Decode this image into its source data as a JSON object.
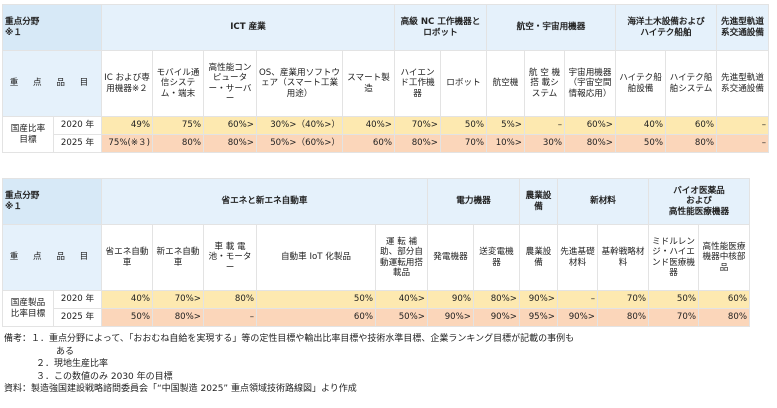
{
  "table1": {
    "header": {
      "field_label": "重点分野\n※１",
      "item_label": "重 点 品 目"
    },
    "categories": [
      "ICT 産業",
      "高級 NC 工作機器とロボット",
      "航空・宇宙用機器",
      "海洋土木設備および\nハイテク船舶",
      "先進型軌道系交通設備"
    ],
    "items": [
      "IC および専用機器※２",
      "モバイル通信システム・端末",
      "高性能コンピューター・サーバー",
      "OS、産業用ソフトウェア（スマート工業用途）",
      "スマート製造",
      "ハイエンド工作機器",
      "ロボット",
      "航空機",
      "航 空 機 搭 載システム",
      "宇宙用機器（宇宙空間情報応用）",
      "ハイテク船舶設備",
      "ハイテク船舶システム",
      "先進型軌道系交通設備"
    ],
    "row_label": "国産比率\n目標",
    "rows": [
      {
        "year": "2020 年",
        "values": [
          "49%",
          "75%",
          "60%>",
          "30%>（40%>）",
          "40%>",
          "70%>",
          "50%",
          "5%>",
          "–",
          "60%>",
          "40%",
          "60%",
          "–"
        ]
      },
      {
        "year": "2025 年",
        "values": [
          "75%(※３)",
          "80%",
          "80%>",
          "50%>（60%>）",
          "60%",
          "80%>",
          "70%",
          "10%>",
          "30%",
          "80%>",
          "50%",
          "80%",
          "–"
        ]
      }
    ]
  },
  "table2": {
    "header": {
      "field_label": "重点分野\n※１",
      "item_label": "重 点 品 目"
    },
    "categories": [
      "省エネと新エネ自動車",
      "電力機器",
      "農業設備",
      "新材料",
      "バイオ医薬品\nおよび\n高性能医療機器"
    ],
    "items": [
      "省エネ自動車",
      "新エネ自動車",
      "車 載 電 池・モーター",
      "自動車 IoT 化製品",
      "運 転 補 助、部分自動運転用搭載品",
      "発電機器",
      "送変電機器",
      "農業設備",
      "先進基礎材料",
      "基幹戦略材料",
      "ミドルレンジ・ハイエンド医療機器",
      "高性能医療機器中核部品"
    ],
    "row_label": "国産製品\n比率目標",
    "rows": [
      {
        "year": "2020 年",
        "values": [
          "40%",
          "70%>",
          "80%",
          "50%",
          "40%>",
          "90%",
          "80%>",
          "90%>",
          "–",
          "70%",
          "50%",
          "60%"
        ]
      },
      {
        "year": "2025 年",
        "values": [
          "50%",
          "80%>",
          "–",
          "60%",
          "50%>",
          "90%>",
          "90%>",
          "95%>",
          "90%>",
          "80%",
          "70%",
          "80%"
        ]
      }
    ]
  },
  "notes": {
    "label": "備考：",
    "n1": "１．重点分野によって、「おおむね自給を実現する」等の定性目標や輸出比率目標や技術水準目標、企業ランキング目標が記載の事例も",
    "n1_cont": "ある",
    "n2": "２．現地生産比率",
    "n3": "３．この数値のみ 2030 年の目標",
    "source": "資料：製造強国建設戦略諮問委員会「“中国製造 2025” 重点領域技術路線図」より作成"
  }
}
